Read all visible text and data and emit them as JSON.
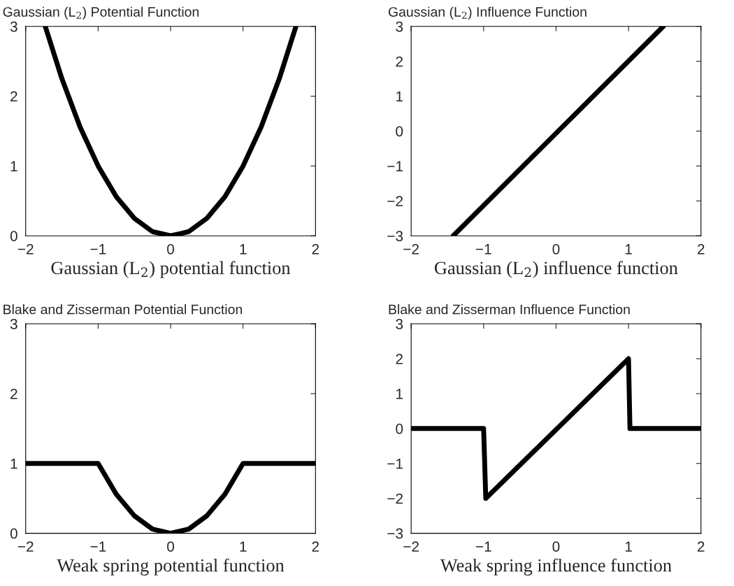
{
  "chart_data": [
    {
      "type": "line",
      "title": "Gaussian (L$_{2}$) Potential Function",
      "xlabel": "Gaussian (L$_{2}$) potential function",
      "xlim": [
        -2,
        2
      ],
      "ylim": [
        0,
        3
      ],
      "xticks": [
        -2,
        -1,
        0,
        1,
        2
      ],
      "yticks": [
        0,
        1,
        2,
        3
      ],
      "grid": false,
      "legend": false,
      "marker": "none",
      "line_style": "solid",
      "series": [
        {
          "color": "#000000",
          "x": [
            -1.73,
            -1.5,
            -1.25,
            -1.0,
            -0.75,
            -0.5,
            -0.25,
            0,
            0.25,
            0.5,
            0.75,
            1.0,
            1.25,
            1.5,
            1.73
          ],
          "values": [
            3.0,
            2.25,
            1.56,
            1.0,
            0.56,
            0.25,
            0.06,
            0,
            0.06,
            0.25,
            0.56,
            1.0,
            1.56,
            2.25,
            3.0
          ]
        }
      ]
    },
    {
      "type": "line",
      "title": "Gaussian (L$_{2}$) Influence Function",
      "xlabel": "Gaussian (L$_{2}$) influence function",
      "xlim": [
        -2,
        2
      ],
      "ylim": [
        -3,
        3
      ],
      "xticks": [
        -2,
        -1,
        0,
        1,
        2
      ],
      "yticks": [
        -3,
        -2,
        -1,
        0,
        1,
        2,
        3
      ],
      "grid": false,
      "legend": false,
      "marker": "none",
      "line_style": "solid",
      "series": [
        {
          "color": "#000000",
          "x": [
            -1.42,
            1.48
          ],
          "values": [
            -3.0,
            3.0
          ]
        }
      ]
    },
    {
      "type": "line",
      "title": "Blake and Zisserman Potential Function",
      "xlabel": "Weak spring potential function",
      "xlim": [
        -2,
        2
      ],
      "ylim": [
        0,
        3
      ],
      "xticks": [
        -2,
        -1,
        0,
        1,
        2
      ],
      "yticks": [
        0,
        1,
        2,
        3
      ],
      "grid": false,
      "legend": false,
      "marker": "none",
      "line_style": "solid",
      "series": [
        {
          "color": "#000000",
          "x": [
            -2,
            -1.0,
            -0.75,
            -0.5,
            -0.25,
            0,
            0.25,
            0.5,
            0.75,
            1.0,
            2
          ],
          "values": [
            1.0,
            1.0,
            0.56,
            0.25,
            0.06,
            0,
            0.06,
            0.25,
            0.56,
            1.0,
            1.0
          ]
        }
      ]
    },
    {
      "type": "line",
      "title": "Blake and Zisserman Influence Function",
      "xlabel": "Weak spring influence function",
      "xlim": [
        -2,
        2
      ],
      "ylim": [
        -3,
        3
      ],
      "xticks": [
        -2,
        -1,
        0,
        1,
        2
      ],
      "yticks": [
        -3,
        -2,
        -1,
        0,
        1,
        2,
        3
      ],
      "grid": false,
      "legend": false,
      "marker": "none",
      "line_style": "solid",
      "series": [
        {
          "color": "#000000",
          "x": [
            -2,
            -1.0,
            -0.97,
            1.0,
            1.02,
            2
          ],
          "values": [
            0,
            0,
            -2.0,
            2.0,
            0,
            0
          ]
        }
      ]
    }
  ]
}
